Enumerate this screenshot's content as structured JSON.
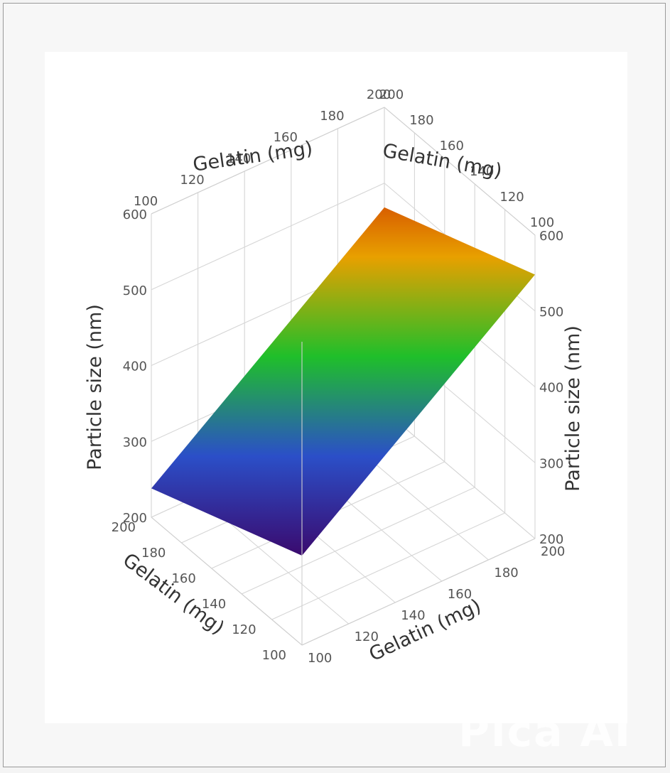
{
  "chart_data": {
    "type": "surface",
    "x_axis": {
      "label": "Gelatin (mg)",
      "range": [
        100,
        200
      ],
      "ticks": [
        100,
        120,
        140,
        160,
        180,
        200
      ]
    },
    "y_axis": {
      "label": "Gelatin (mg)",
      "range": [
        100,
        200
      ],
      "ticks": [
        100,
        120,
        140,
        160,
        180,
        200
      ]
    },
    "z_axis": {
      "label": "Particle size (nm)",
      "range": [
        200,
        600
      ],
      "ticks": [
        200,
        300,
        400,
        500,
        600
      ]
    },
    "surface_corners": [
      {
        "x": 200,
        "y": 100,
        "z": 238
      },
      {
        "x": 100,
        "y": 100,
        "z": 318
      },
      {
        "x": 100,
        "y": 200,
        "z": 548
      },
      {
        "x": 200,
        "y": 200,
        "z": 468
      }
    ],
    "colorscale": [
      "#3a0a6e",
      "#2b4fc8",
      "#1fbf2a",
      "#e8a000",
      "#c81e00"
    ],
    "grid": true
  },
  "watermark": "Pica AI"
}
